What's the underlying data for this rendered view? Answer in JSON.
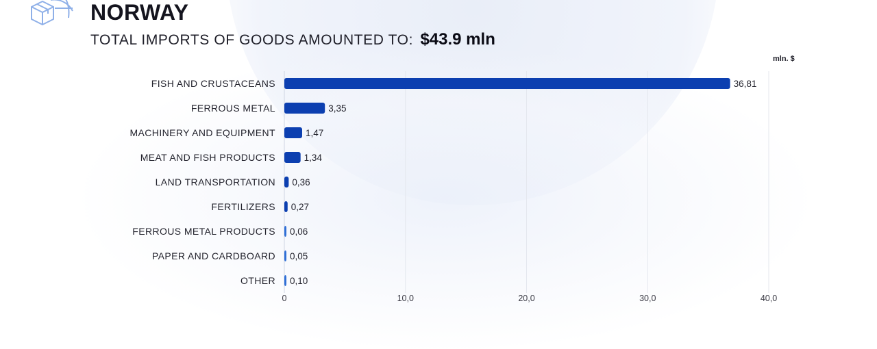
{
  "header": {
    "title": "NORWAY",
    "subtitle_prefix": "TOTAL IMPORTS OF GOODS AMOUNTED TO:",
    "subtitle_amount": "$43.9 mln",
    "logo_icon": "globe-box-icon"
  },
  "colors": {
    "bar": "#0c3fb0",
    "bar_light": "#2f6fd6",
    "grid": "#e4e7ee",
    "text": "#23232d"
  },
  "chart_data": {
    "type": "bar",
    "orientation": "horizontal",
    "unit_label": "mln. $",
    "categories": [
      "FISH AND CRUSTACEANS",
      "FERROUS METAL",
      "MACHINERY AND EQUIPMENT",
      "MEAT AND FISH PRODUCTS",
      "LAND TRANSPORTATION",
      "FERTILIZERS",
      "FERROUS METAL PRODUCTS",
      "PAPER AND CARDBOARD",
      "OTHER"
    ],
    "values": [
      36.81,
      3.35,
      1.47,
      1.34,
      0.36,
      0.27,
      0.06,
      0.05,
      0.1
    ],
    "value_labels": [
      "36,81",
      "3,35",
      "1,47",
      "1,34",
      "0,36",
      "0,27",
      "0,06",
      "0,05",
      "0,10"
    ],
    "xlim": [
      0,
      40
    ],
    "xticks": [
      0,
      10,
      20,
      30,
      40
    ],
    "xtick_labels": [
      "0",
      "10,0",
      "20,0",
      "30,0",
      "40,0"
    ],
    "grid": true,
    "legend": "none"
  }
}
